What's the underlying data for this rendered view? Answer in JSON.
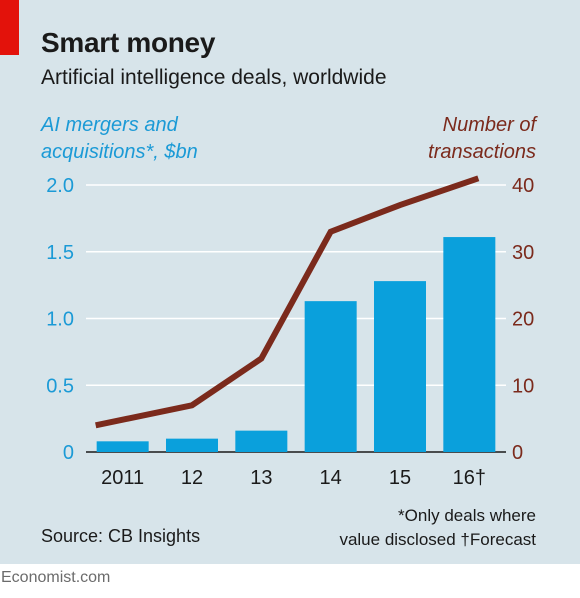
{
  "header": {
    "title": "Smart money",
    "subtitle": "Artificial intelligence deals, worldwide"
  },
  "axes": {
    "left_title_line1": "AI mergers and",
    "left_title_line2": "acquisitions*, $bn",
    "right_title_line1": "Number of",
    "right_title_line2": "transactions"
  },
  "footer": {
    "source": "Source: CB Insights",
    "footnote_line1": "*Only deals where",
    "footnote_line2": "value disclosed   †Forecast",
    "brand": "Economist.com"
  },
  "colors": {
    "bar": "#0aa0dc",
    "line": "#7b2a1c",
    "left_axis": "#1b9ad6",
    "right_axis": "#7b2a1c",
    "background": "#d7e4ea"
  },
  "chart_data": {
    "type": "bar",
    "title": "Smart money",
    "subtitle": "Artificial intelligence deals, worldwide",
    "categories": [
      "2011",
      "12",
      "13",
      "14",
      "15",
      "16†"
    ],
    "series": [
      {
        "name": "AI mergers and acquisitions*, $bn",
        "type": "bar",
        "axis": "left",
        "values": [
          0.08,
          0.1,
          0.16,
          1.13,
          1.28,
          1.61
        ]
      },
      {
        "name": "Number of transactions",
        "type": "line",
        "axis": "right",
        "values": [
          4,
          7,
          14,
          33,
          37,
          41
        ]
      }
    ],
    "ylim_left": [
      0,
      2.0
    ],
    "ylim_right": [
      0,
      40
    ],
    "yticks_left": [
      "0",
      "0.5",
      "1.0",
      "1.5",
      "2.0"
    ],
    "yticks_right": [
      "0",
      "10",
      "20",
      "30",
      "40"
    ],
    "grid": true
  }
}
